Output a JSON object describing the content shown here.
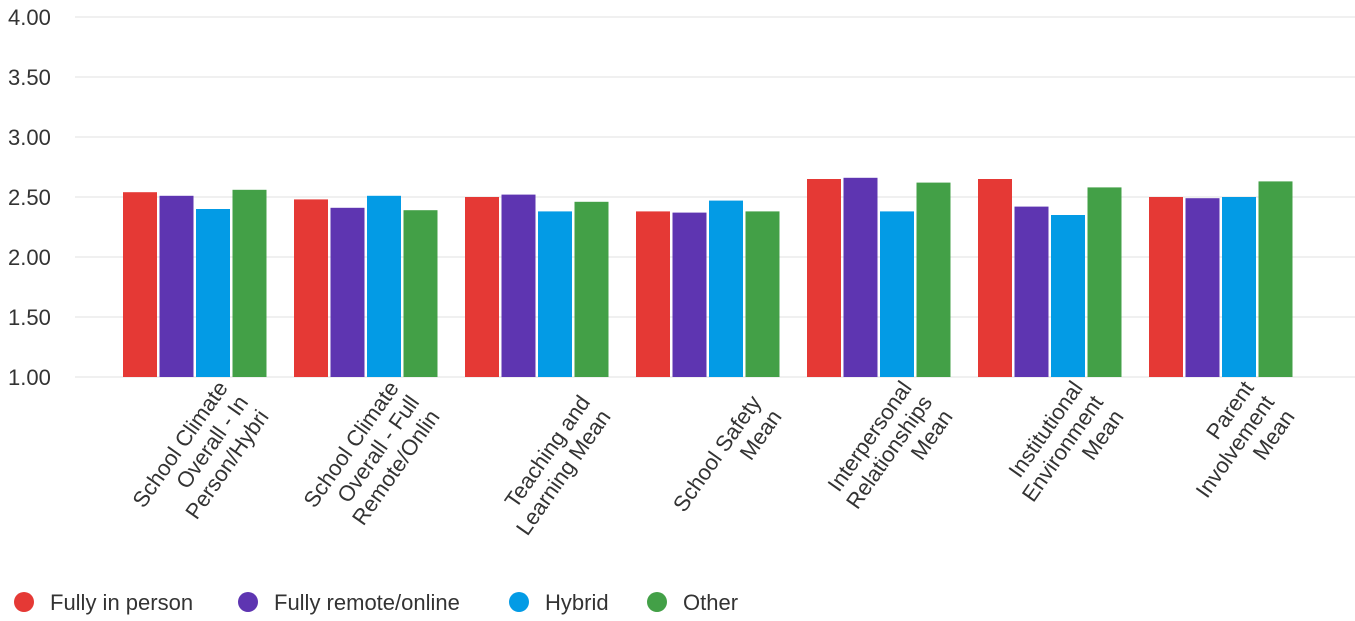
{
  "chart_data": {
    "type": "bar",
    "categories": [
      [
        "School Climate",
        "Overall - In",
        "Person/Hybri"
      ],
      [
        "School Climate",
        "Overall - Full",
        "Remote/Onlin"
      ],
      [
        "Teaching and",
        "Learning Mean"
      ],
      [
        "School Safety",
        "Mean"
      ],
      [
        "Interpersonal",
        "Relationships",
        "Mean"
      ],
      [
        "Institutional",
        "Environment",
        "Mean"
      ],
      [
        "Parent",
        "Involvement",
        "Mean"
      ]
    ],
    "series": [
      {
        "name": "Fully in person",
        "color": "#e53935",
        "values": [
          2.54,
          2.48,
          2.5,
          2.38,
          2.65,
          2.65,
          2.5
        ]
      },
      {
        "name": "Fully remote/online",
        "color": "#5e35b1",
        "values": [
          2.51,
          2.41,
          2.52,
          2.37,
          2.66,
          2.42,
          2.49
        ]
      },
      {
        "name": "Hybrid",
        "color": "#039be5",
        "values": [
          2.4,
          2.51,
          2.38,
          2.47,
          2.38,
          2.35,
          2.5
        ]
      },
      {
        "name": "Other",
        "color": "#43a047",
        "values": [
          2.56,
          2.39,
          2.46,
          2.38,
          2.62,
          2.58,
          2.63
        ]
      }
    ],
    "ylim": [
      1.0,
      4.0
    ],
    "yticks": [
      "1.00",
      "1.50",
      "2.00",
      "2.50",
      "3.00",
      "3.50",
      "4.00"
    ],
    "grid": true,
    "legend_position": "bottom-left"
  }
}
